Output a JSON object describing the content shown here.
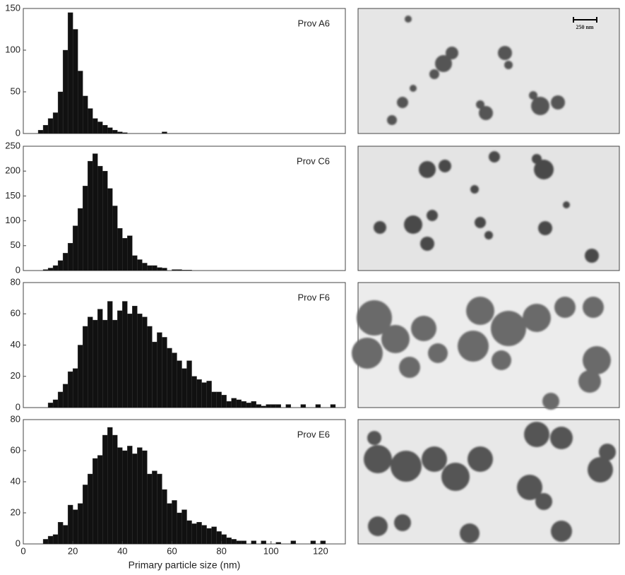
{
  "chart_data": [
    {
      "type": "histogram",
      "annotation": "Prov A6",
      "color": "#111111",
      "bins": [
        6,
        8,
        10,
        12,
        14,
        16,
        18,
        20,
        22,
        24,
        26,
        28,
        30,
        32,
        34,
        36,
        38,
        40,
        42,
        44,
        46,
        48,
        50,
        52,
        54,
        56,
        58,
        60
      ],
      "values": [
        4,
        10,
        18,
        25,
        50,
        100,
        145,
        125,
        75,
        45,
        30,
        18,
        14,
        10,
        7,
        4,
        2,
        1,
        0,
        0,
        0,
        0,
        0,
        0,
        0,
        2,
        0
      ],
      "xlim": [
        0,
        130
      ],
      "ylim": [
        0,
        150
      ],
      "yticks": [
        0,
        50,
        100,
        150
      ]
    },
    {
      "type": "histogram",
      "annotation": "Prov C6",
      "color": "#111111",
      "bins": [
        8,
        10,
        12,
        14,
        16,
        18,
        20,
        22,
        24,
        26,
        28,
        30,
        32,
        34,
        36,
        38,
        40,
        42,
        44,
        46,
        48,
        50,
        52,
        54,
        56,
        58,
        60,
        62,
        64,
        66,
        68,
        70
      ],
      "values": [
        2,
        5,
        10,
        20,
        35,
        55,
        90,
        125,
        170,
        220,
        235,
        210,
        200,
        165,
        130,
        85,
        65,
        70,
        30,
        22,
        15,
        10,
        10,
        6,
        5,
        0,
        2,
        2,
        1,
        1,
        0
      ],
      "xlim": [
        0,
        130
      ],
      "ylim": [
        0,
        250
      ],
      "yticks": [
        0,
        50,
        100,
        150,
        200,
        250
      ]
    },
    {
      "type": "histogram",
      "annotation": "Prov F6",
      "color": "#111111",
      "bins": [
        10,
        12,
        14,
        16,
        18,
        20,
        22,
        24,
        26,
        28,
        30,
        32,
        34,
        36,
        38,
        40,
        42,
        44,
        46,
        48,
        50,
        52,
        54,
        56,
        58,
        60,
        62,
        64,
        66,
        68,
        70,
        72,
        74,
        76,
        78,
        80,
        82,
        84,
        86,
        88,
        90,
        92,
        94,
        96,
        98,
        100,
        102,
        104,
        106,
        108,
        110,
        112,
        114,
        116,
        118,
        120,
        122,
        124,
        126
      ],
      "values": [
        3,
        5,
        10,
        15,
        23,
        25,
        40,
        52,
        58,
        56,
        63,
        56,
        68,
        56,
        62,
        68,
        60,
        65,
        60,
        58,
        52,
        42,
        48,
        45,
        38,
        35,
        30,
        25,
        30,
        20,
        18,
        16,
        17,
        10,
        10,
        8,
        4,
        6,
        5,
        4,
        3,
        4,
        2,
        1,
        2,
        2,
        2,
        0,
        2,
        0,
        0,
        2,
        0,
        0,
        2,
        0,
        0,
        2
      ],
      "xlim": [
        0,
        130
      ],
      "ylim": [
        0,
        80
      ],
      "yticks": [
        0,
        20,
        40,
        60,
        80
      ]
    },
    {
      "type": "histogram",
      "annotation": "Prov E6",
      "color": "#111111",
      "bins": [
        8,
        10,
        12,
        14,
        16,
        18,
        20,
        22,
        24,
        26,
        28,
        30,
        32,
        34,
        36,
        38,
        40,
        42,
        44,
        46,
        48,
        50,
        52,
        54,
        56,
        58,
        60,
        62,
        64,
        66,
        68,
        70,
        72,
        74,
        76,
        78,
        80,
        82,
        84,
        86,
        88,
        90,
        92,
        94,
        96,
        98,
        100,
        102,
        104,
        106,
        108,
        110,
        112,
        114,
        116,
        118,
        120,
        122
      ],
      "values": [
        3,
        5,
        6,
        14,
        12,
        25,
        22,
        26,
        38,
        45,
        55,
        57,
        70,
        75,
        70,
        62,
        60,
        63,
        58,
        62,
        60,
        45,
        47,
        45,
        35,
        26,
        28,
        20,
        22,
        15,
        13,
        14,
        12,
        10,
        11,
        8,
        6,
        4,
        3,
        2,
        2,
        0,
        2,
        0,
        2,
        0,
        0,
        1,
        0,
        0,
        2,
        0,
        0,
        0,
        2,
        0,
        2
      ],
      "xlim": [
        0,
        130
      ],
      "ylim": [
        0,
        80
      ],
      "yticks": [
        0,
        20,
        40,
        60,
        80
      ],
      "xticks": [
        0,
        20,
        40,
        60,
        80,
        100,
        120
      ],
      "xlabel": "Primary particle size (nm)"
    }
  ],
  "scale_bar_label": "250 nm"
}
